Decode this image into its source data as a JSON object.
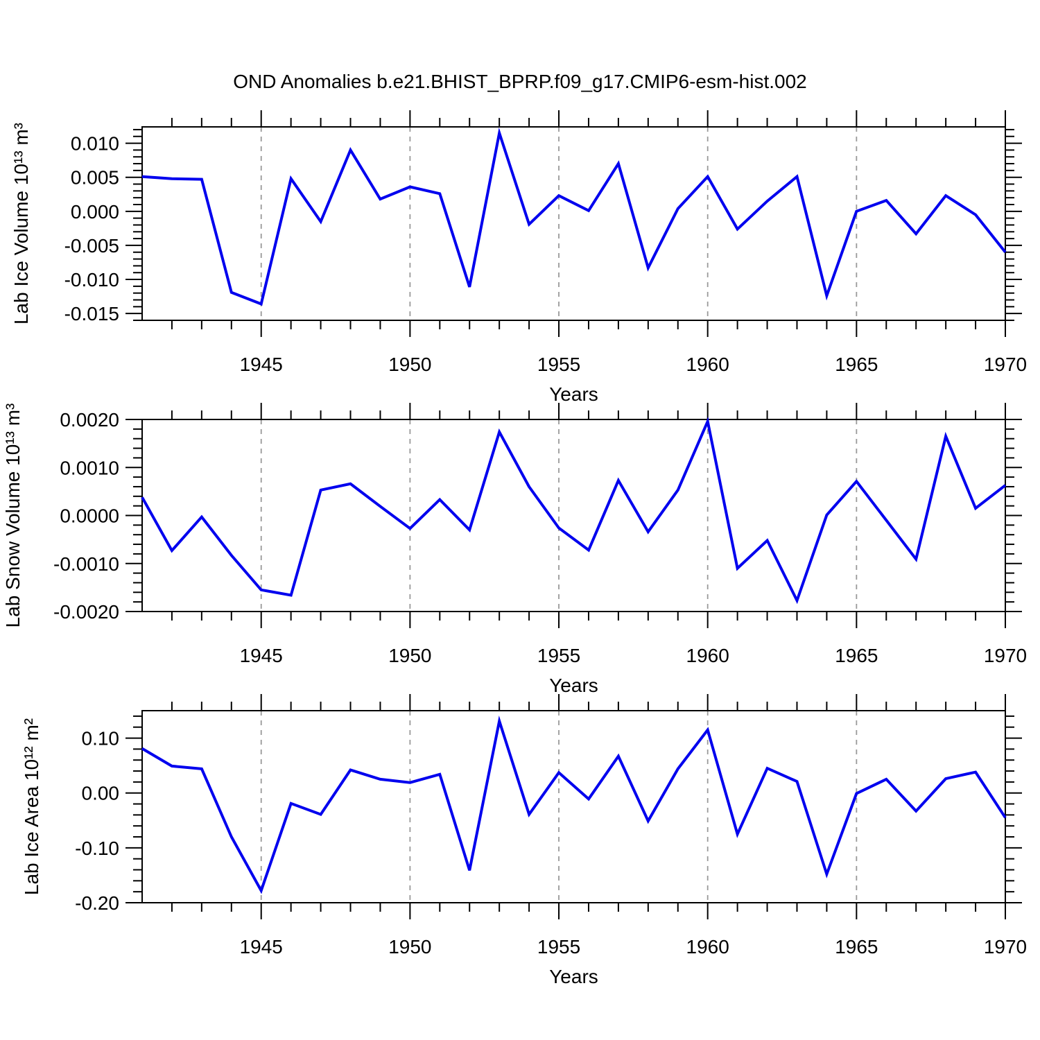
{
  "figure": {
    "title": "OND Anomalies b.e21.BHIST_BPRP.f09_g17.CMIP6-esm-hist.002",
    "line_color": "#0000ee",
    "grid_color": "#999999",
    "frame_color": "#000000"
  },
  "chart_data": [
    {
      "type": "line",
      "name": "lab-ice-volume",
      "ylabel": "Lab Ice Volume 10¹³ m³",
      "xlabel": "Years",
      "x": [
        1941,
        1942,
        1943,
        1944,
        1945,
        1946,
        1947,
        1948,
        1949,
        1950,
        1951,
        1952,
        1953,
        1954,
        1955,
        1956,
        1957,
        1958,
        1959,
        1960,
        1961,
        1962,
        1963,
        1964,
        1965,
        1966,
        1967,
        1968,
        1969,
        1970
      ],
      "values": [
        0.0051,
        0.0048,
        0.0047,
        -0.0119,
        -0.0136,
        0.0048,
        -0.0015,
        0.009,
        0.0018,
        0.0036,
        0.0026,
        -0.0111,
        0.0115,
        -0.0019,
        0.0023,
        0.0001,
        0.007,
        -0.0083,
        0.0004,
        0.0051,
        -0.0026,
        0.0015,
        0.0051,
        -0.0124,
        0.0,
        0.0016,
        -0.0033,
        0.0023,
        -0.0005,
        -0.006
      ],
      "xlim": [
        1941,
        1970
      ],
      "ylim": [
        -0.016,
        0.0124
      ],
      "xticks": [
        1945,
        1950,
        1955,
        1960,
        1965,
        1970
      ],
      "ytick_labels": [
        "0.010",
        "0.005",
        "0.000",
        "-0.005",
        "-0.010",
        "-0.015"
      ],
      "ytick_values": [
        0.01,
        0.005,
        0.0,
        -0.005,
        -0.01,
        -0.015
      ],
      "y_minor_step": 0.001,
      "x_minor_step": 1,
      "grid": "vertical-dashed-at-xticks",
      "legend": null
    },
    {
      "type": "line",
      "name": "lab-snow-volume",
      "ylabel": "Lab Snow Volume 10¹³ m³",
      "xlabel": "Years",
      "x": [
        1941,
        1942,
        1943,
        1944,
        1945,
        1946,
        1947,
        1948,
        1949,
        1950,
        1951,
        1952,
        1953,
        1954,
        1955,
        1956,
        1957,
        1958,
        1959,
        1960,
        1961,
        1962,
        1963,
        1964,
        1965,
        1966,
        1967,
        1968,
        1969,
        1970
      ],
      "values": [
        0.00038,
        -0.00073,
        -3e-05,
        -0.00083,
        -0.00155,
        -0.00166,
        0.00053,
        0.00066,
        0.00019,
        -0.00027,
        0.00033,
        -0.0003,
        0.00174,
        0.0006,
        -0.00026,
        -0.00072,
        0.00073,
        -0.00034,
        0.00053,
        0.00196,
        -0.0011,
        -0.00052,
        -0.00177,
        1e-05,
        0.00071,
        -0.0001,
        -0.00091,
        0.00165,
        0.00015,
        0.00063
      ],
      "xlim": [
        1941,
        1970
      ],
      "ylim": [
        -0.002,
        0.002
      ],
      "xticks": [
        1945,
        1950,
        1955,
        1960,
        1965,
        1970
      ],
      "ytick_labels": [
        "0.0020",
        "0.0010",
        "0.0000",
        "-0.0010",
        "-0.0020"
      ],
      "ytick_values": [
        0.002,
        0.001,
        0.0,
        -0.001,
        -0.002
      ],
      "y_minor_step": 0.0002,
      "x_minor_step": 1,
      "grid": "vertical-dashed-at-xticks",
      "legend": null
    },
    {
      "type": "line",
      "name": "lab-ice-area",
      "ylabel": "Lab Ice Area 10¹² m²",
      "xlabel": "Years",
      "x": [
        1941,
        1942,
        1943,
        1944,
        1945,
        1946,
        1947,
        1948,
        1949,
        1950,
        1951,
        1952,
        1953,
        1954,
        1955,
        1956,
        1957,
        1958,
        1959,
        1960,
        1961,
        1962,
        1963,
        1964,
        1965,
        1966,
        1967,
        1968,
        1969,
        1970
      ],
      "values": [
        0.081,
        0.049,
        0.044,
        -0.08,
        -0.178,
        -0.019,
        -0.039,
        0.042,
        0.025,
        0.019,
        0.034,
        -0.141,
        0.131,
        -0.039,
        0.037,
        -0.011,
        0.067,
        -0.051,
        0.044,
        0.115,
        -0.075,
        0.045,
        0.021,
        -0.148,
        -0.001,
        0.025,
        -0.033,
        0.026,
        0.038,
        -0.045
      ],
      "xlim": [
        1941,
        1970
      ],
      "ylim": [
        -0.2,
        0.15
      ],
      "xticks": [
        1945,
        1950,
        1955,
        1960,
        1965,
        1970
      ],
      "ytick_labels": [
        "0.10",
        "0.00",
        "-0.10",
        "-0.20"
      ],
      "ytick_values": [
        0.1,
        0.0,
        -0.1,
        -0.2
      ],
      "y_minor_step": 0.02,
      "x_minor_step": 1,
      "grid": "vertical-dashed-at-xticks",
      "legend": null
    }
  ]
}
